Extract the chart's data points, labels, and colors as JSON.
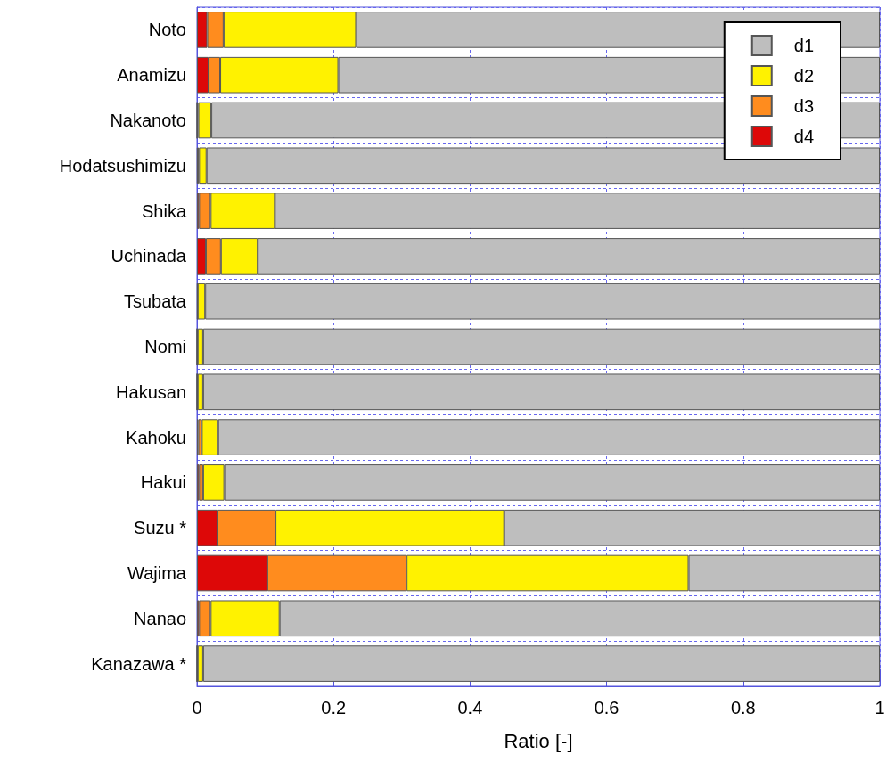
{
  "chart_data": {
    "type": "bar",
    "orientation": "horizontal",
    "stacked": true,
    "xlabel": "Ratio [-]",
    "categories": [
      "Noto",
      "Anamizu",
      "Nakanoto",
      "Hodatsushimizu",
      "Shika",
      "Uchinada",
      "Tsubata",
      "Nomi",
      "Hakusan",
      "Kahoku",
      "Hakui",
      "Suzu *",
      "Wajima",
      "Nanao",
      "Kanazawa *"
    ],
    "series": [
      {
        "name": "d4",
        "color": "#dd0808",
        "values": [
          0.015,
          0.017,
          0,
          0.001,
          0.003,
          0.013,
          0.001,
          0,
          0,
          0.002,
          0.003,
          0.03,
          0.103,
          0.003,
          0
        ]
      },
      {
        "name": "d3",
        "color": "#ff8c1e",
        "values": [
          0.024,
          0.017,
          0.002,
          0.002,
          0.017,
          0.022,
          0,
          0.001,
          0.001,
          0.005,
          0.006,
          0.085,
          0.204,
          0.017,
          0.001
        ]
      },
      {
        "name": "d2",
        "color": "#fff200",
        "values": [
          0.194,
          0.173,
          0.019,
          0.011,
          0.094,
          0.054,
          0.011,
          0.008,
          0.008,
          0.024,
          0.031,
          0.335,
          0.413,
          0.101,
          0.008
        ]
      },
      {
        "name": "d1",
        "color": "#bebebe",
        "values": [
          0.767,
          0.793,
          0.979,
          0.986,
          0.886,
          0.911,
          0.988,
          0.991,
          0.991,
          0.969,
          0.96,
          0.55,
          0.28,
          0.879,
          0.991
        ]
      }
    ],
    "xlim": [
      0,
      1
    ],
    "xticks": [
      0,
      0.2,
      0.4,
      0.6,
      0.8,
      1
    ],
    "grid": true,
    "legend": "top right"
  }
}
